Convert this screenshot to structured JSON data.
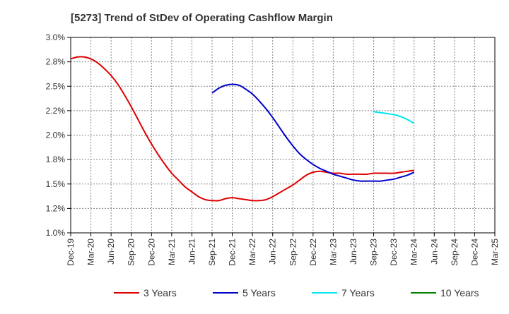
{
  "chart_data": {
    "type": "line",
    "title": "[5273]  Trend of StDev of Operating Cashflow Margin",
    "xlabel": "",
    "ylabel": "",
    "ylim": [
      1.0,
      3.0
    ],
    "yticks": [
      "1.0%",
      "1.2%",
      "1.5%",
      "1.8%",
      "2.0%",
      "2.2%",
      "2.5%",
      "2.8%",
      "3.0%"
    ],
    "xticks": [
      "Dec-19",
      "Mar-20",
      "Jun-20",
      "Sep-20",
      "Dec-20",
      "Mar-21",
      "Jun-21",
      "Sep-21",
      "Dec-21",
      "Mar-22",
      "Jun-22",
      "Sep-22",
      "Dec-22",
      "Mar-23",
      "Jun-23",
      "Sep-23",
      "Dec-23",
      "Mar-24",
      "Jun-24",
      "Sep-24",
      "Dec-24",
      "Mar-25"
    ],
    "grid": "horizontal-dashed",
    "legend_position": "bottom",
    "colors": {
      "3 Years": "#e00000",
      "5 Years": "#0000cc",
      "7 Years": "#00e5ee",
      "10 Years": "#008000"
    },
    "series": [
      {
        "name": "3 Years",
        "x": [
          "Dec-19",
          "Jan-20",
          "Feb-20",
          "Mar-20",
          "Apr-20",
          "May-20",
          "Jun-20",
          "Jul-20",
          "Aug-20",
          "Sep-20",
          "Oct-20",
          "Nov-20",
          "Dec-20",
          "Jan-21",
          "Feb-21",
          "Mar-21",
          "Apr-21",
          "May-21",
          "Jun-21",
          "Jul-21",
          "Aug-21",
          "Sep-21",
          "Oct-21",
          "Nov-21",
          "Dec-21",
          "Jan-22",
          "Feb-22",
          "Mar-22",
          "Apr-22",
          "May-22",
          "Jun-22",
          "Jul-22",
          "Aug-22",
          "Sep-22",
          "Oct-22",
          "Nov-22",
          "Dec-22",
          "Jan-23",
          "Feb-23",
          "Mar-23",
          "Apr-23",
          "May-23",
          "Jun-23",
          "Jul-23",
          "Aug-23",
          "Sep-23",
          "Oct-23",
          "Nov-23",
          "Dec-23",
          "Jan-24",
          "Feb-24",
          "Mar-24"
        ],
        "values": [
          2.78,
          2.8,
          2.8,
          2.78,
          2.74,
          2.68,
          2.61,
          2.52,
          2.41,
          2.29,
          2.16,
          2.03,
          1.91,
          1.8,
          1.7,
          1.61,
          1.54,
          1.47,
          1.42,
          1.37,
          1.34,
          1.33,
          1.33,
          1.35,
          1.36,
          1.35,
          1.34,
          1.33,
          1.33,
          1.34,
          1.37,
          1.41,
          1.45,
          1.49,
          1.54,
          1.59,
          1.62,
          1.63,
          1.62,
          1.61,
          1.61,
          1.6,
          1.6,
          1.6,
          1.6,
          1.61,
          1.61,
          1.61,
          1.61,
          1.62,
          1.63,
          1.64
        ]
      },
      {
        "name": "5 Years",
        "x": [
          "Sep-21",
          "Oct-21",
          "Nov-21",
          "Dec-21",
          "Jan-22",
          "Feb-22",
          "Mar-22",
          "Apr-22",
          "May-22",
          "Jun-22",
          "Jul-22",
          "Aug-22",
          "Sep-22",
          "Oct-22",
          "Nov-22",
          "Dec-22",
          "Jan-23",
          "Feb-23",
          "Mar-23",
          "Apr-23",
          "May-23",
          "Jun-23",
          "Jul-23",
          "Aug-23",
          "Sep-23",
          "Oct-23",
          "Nov-23",
          "Dec-23",
          "Jan-24",
          "Feb-24",
          "Mar-24"
        ],
        "values": [
          2.43,
          2.48,
          2.51,
          2.52,
          2.51,
          2.47,
          2.42,
          2.35,
          2.27,
          2.18,
          2.08,
          1.98,
          1.89,
          1.81,
          1.75,
          1.7,
          1.66,
          1.63,
          1.6,
          1.58,
          1.56,
          1.54,
          1.53,
          1.53,
          1.53,
          1.53,
          1.54,
          1.55,
          1.57,
          1.59,
          1.62
        ]
      },
      {
        "name": "7 Years",
        "x": [
          "Sep-23",
          "Oct-23",
          "Nov-23",
          "Dec-23",
          "Jan-24",
          "Feb-24",
          "Mar-24"
        ],
        "values": [
          2.24,
          2.23,
          2.22,
          2.21,
          2.19,
          2.16,
          2.12
        ]
      },
      {
        "name": "10 Years",
        "x": [],
        "values": []
      }
    ]
  }
}
